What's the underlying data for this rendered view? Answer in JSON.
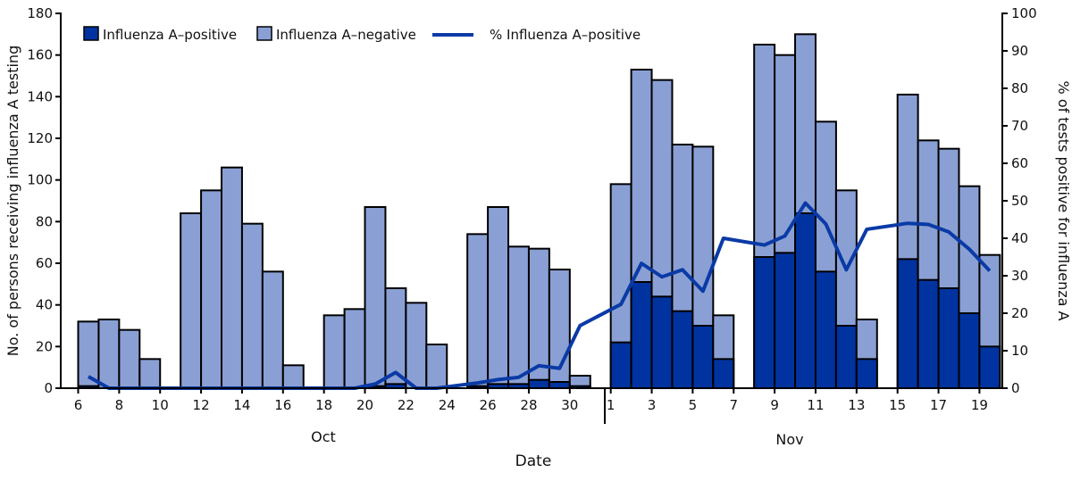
{
  "chart_data": {
    "type": "bar",
    "stacked": true,
    "xlabel": "Date",
    "ylabel": "No. of persons receiving influenza A testing",
    "y2label": "% of tests positive for influenza A",
    "ylim": [
      0,
      180
    ],
    "yticks": [
      0,
      20,
      40,
      60,
      80,
      100,
      120,
      140,
      160,
      180
    ],
    "y2lim": [
      0,
      100
    ],
    "y2ticks": [
      0,
      10,
      20,
      30,
      40,
      50,
      60,
      70,
      80,
      90,
      100
    ],
    "month_labels": [
      "Oct",
      "Nov"
    ],
    "x_tick_labels": [
      "6",
      "8",
      "10",
      "12",
      "14",
      "16",
      "18",
      "20",
      "22",
      "24",
      "26",
      "28",
      "30",
      "1",
      "3",
      "5",
      "7",
      "9",
      "11",
      "13",
      "15",
      "17",
      "19"
    ],
    "x_tick_dates": [
      "Oct 6",
      "Oct 8",
      "Oct 10",
      "Oct 12",
      "Oct 14",
      "Oct 16",
      "Oct 18",
      "Oct 20",
      "Oct 22",
      "Oct 24",
      "Oct 26",
      "Oct 28",
      "Oct 30",
      "Nov 1",
      "Nov 3",
      "Nov 5",
      "Nov 7",
      "Nov 9",
      "Nov 11",
      "Nov 13",
      "Nov 15",
      "Nov 17",
      "Nov 19"
    ],
    "legend": {
      "position": "top-left",
      "items": [
        "Influenza A–positive",
        "Influenza A–negative",
        "% Influenza A–positive"
      ]
    },
    "colors": {
      "positive": "#0033a0",
      "negative": "#8aa0d4",
      "line": "#0a3aa6"
    },
    "dates": [
      "Oct 6",
      "Oct 7",
      "Oct 8",
      "Oct 9",
      "Oct 11",
      "Oct 12",
      "Oct 13",
      "Oct 14",
      "Oct 15",
      "Oct 16",
      "Oct 18",
      "Oct 19",
      "Oct 20",
      "Oct 21",
      "Oct 22",
      "Oct 23",
      "Oct 25",
      "Oct 26",
      "Oct 27",
      "Oct 28",
      "Oct 29",
      "Oct 30",
      "Nov 1",
      "Nov 2",
      "Nov 3",
      "Nov 4",
      "Nov 5",
      "Nov 6",
      "Nov 8",
      "Nov 9",
      "Nov 10",
      "Nov 11",
      "Nov 12",
      "Nov 13",
      "Nov 15",
      "Nov 16",
      "Nov 17",
      "Nov 18",
      "Nov 19"
    ],
    "series": [
      {
        "name": "Influenza A–positive",
        "values": [
          1,
          0,
          0,
          0,
          0,
          0,
          0,
          0,
          0,
          0,
          0,
          0,
          1,
          2,
          0,
          0,
          1,
          2,
          2,
          4,
          3,
          1,
          22,
          51,
          44,
          37,
          30,
          14,
          63,
          65,
          84,
          56,
          30,
          14,
          62,
          52,
          48,
          36,
          20
        ]
      },
      {
        "name": "Influenza A–negative",
        "values": [
          31,
          33,
          28,
          14,
          84,
          95,
          106,
          79,
          56,
          11,
          35,
          38,
          86,
          46,
          41,
          21,
          73,
          85,
          66,
          63,
          54,
          5,
          76,
          102,
          104,
          80,
          86,
          21,
          102,
          95,
          86,
          72,
          65,
          19,
          79,
          67,
          67,
          61,
          44
        ]
      },
      {
        "name": "% Influenza A–positive",
        "axis": "right",
        "values": [
          3.1,
          0,
          0,
          0,
          0,
          0,
          0,
          0,
          0,
          0,
          0,
          0,
          1.1,
          4.2,
          0,
          0,
          1.4,
          2.3,
          2.9,
          6.0,
          5.3,
          16.7,
          22.4,
          33.3,
          29.7,
          31.6,
          25.9,
          40.0,
          38.2,
          40.6,
          49.4,
          43.8,
          31.6,
          42.4,
          44.0,
          43.7,
          41.7,
          37.1,
          31.3
        ]
      }
    ]
  }
}
